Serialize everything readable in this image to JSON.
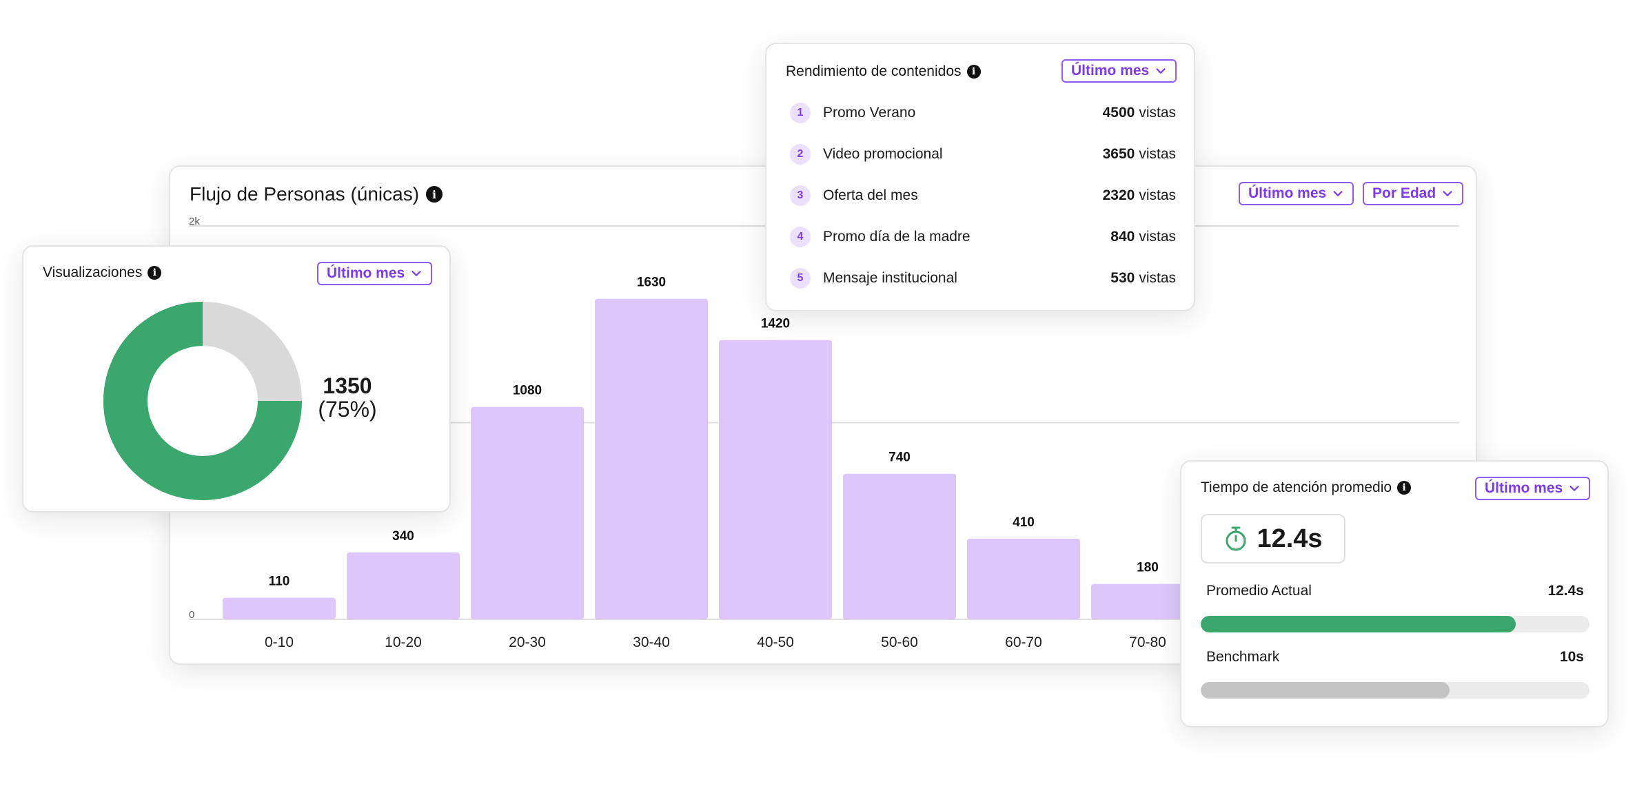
{
  "flow": {
    "title": "Flujo de Personas (únicas)",
    "filter_period": "Último mes",
    "filter_group": "Por Edad"
  },
  "views": {
    "title": "Visualizaciones",
    "filter_period": "Último mes",
    "value": "1350",
    "percent_label": "(75%)",
    "percent": 75,
    "colors": {
      "filled": "#3aa76d",
      "empty": "#d9d9d9"
    }
  },
  "content": {
    "title": "Rendimiento de contenidos",
    "filter_period": "Último mes",
    "unit": "vistas",
    "items": [
      {
        "rank": "1",
        "name": "Promo Verano",
        "count": "4500"
      },
      {
        "rank": "2",
        "name": "Video promocional",
        "count": "3650"
      },
      {
        "rank": "3",
        "name": "Oferta del mes",
        "count": "2320"
      },
      {
        "rank": "4",
        "name": "Promo día de la madre",
        "count": "840"
      },
      {
        "rank": "5",
        "name": "Mensaje institucional",
        "count": "530"
      }
    ]
  },
  "attention": {
    "title": "Tiempo de atención promedio",
    "filter_period": "Último mes",
    "value": "12.4s",
    "timer_icon": "stopwatch-icon",
    "metrics": [
      {
        "label": "Promedio Actual",
        "value": "12.4s",
        "fraction": 0.81,
        "color": "#3aa76d"
      },
      {
        "label": "Benchmark",
        "value": "10s",
        "fraction": 0.64,
        "color": "#c4c4c4"
      }
    ]
  },
  "chart_data": {
    "type": "bar",
    "title": "Flujo de Personas (únicas)",
    "categories": [
      "0-10",
      "10-20",
      "20-30",
      "30-40",
      "40-50",
      "50-60",
      "60-70",
      "70-80"
    ],
    "values": [
      110,
      340,
      1080,
      1630,
      1420,
      740,
      410,
      180
    ],
    "ytick_labels": [
      "0",
      "2k"
    ],
    "ylim": [
      0,
      2000
    ],
    "grid": true,
    "bar_color": "#dcc6fb"
  }
}
